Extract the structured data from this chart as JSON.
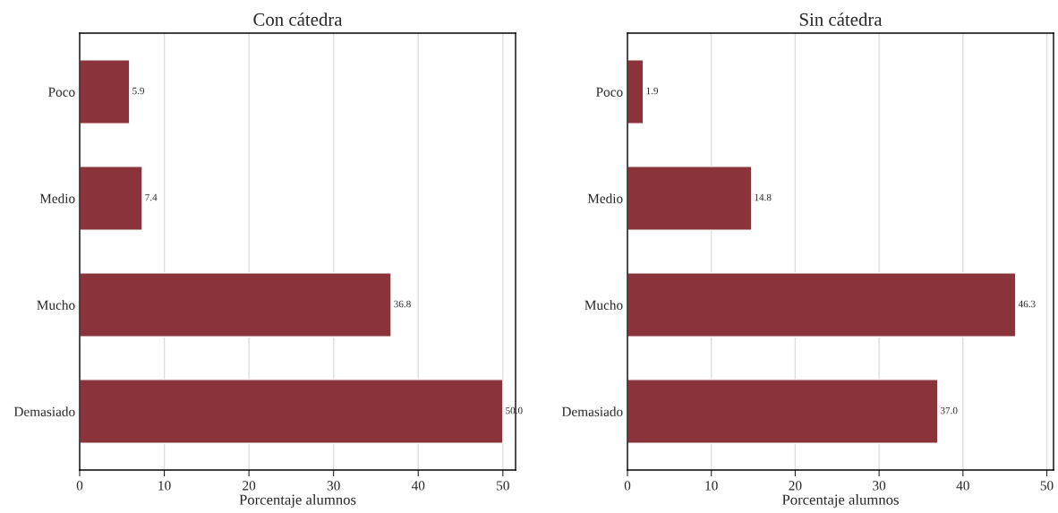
{
  "chart_data": [
    {
      "type": "bar",
      "orientation": "horizontal",
      "title": "Con cátedra",
      "xlabel": "Porcentaje alumnos",
      "categories": [
        "Poco",
        "Medio",
        "Mucho",
        "Demasiado"
      ],
      "values": [
        5.9,
        7.4,
        36.8,
        50.0
      ],
      "value_labels": [
        "5.9",
        "7.4",
        "36.8",
        "50.0"
      ],
      "color": "#8b333a",
      "xlim": [
        0,
        51.5
      ],
      "xticks": [
        0,
        10,
        20,
        30,
        40,
        50
      ],
      "grid": "x",
      "legend": false
    },
    {
      "type": "bar",
      "orientation": "horizontal",
      "title": "Sin cátedra",
      "xlabel": "Porcentaje alumnos",
      "categories": [
        "Poco",
        "Medio",
        "Mucho",
        "Demasiado"
      ],
      "values": [
        1.9,
        14.8,
        46.3,
        37.0
      ],
      "value_labels": [
        "1.9",
        "14.8",
        "46.3",
        "37.0"
      ],
      "color": "#8b333a",
      "xlim": [
        0,
        50.8
      ],
      "xticks": [
        0,
        10,
        20,
        30,
        40,
        50
      ],
      "grid": "x",
      "legend": false
    }
  ]
}
